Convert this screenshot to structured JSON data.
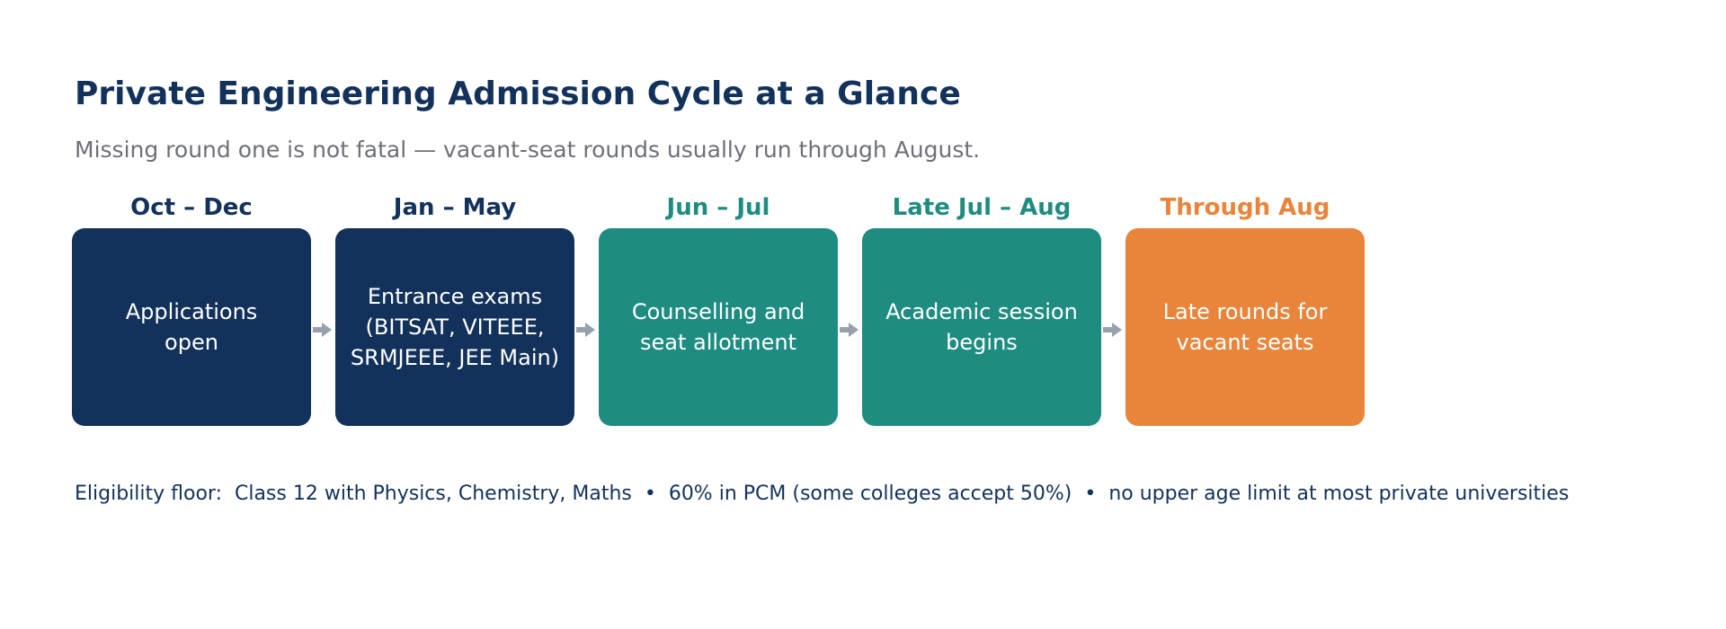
{
  "header": {
    "title": "Private Engineering Admission Cycle at a Glance",
    "subtitle": "Missing round one is not fatal — vacant-seat rounds usually run through August."
  },
  "colors": {
    "navy": "#13325b",
    "teal": "#1f8c81",
    "orange": "#e8853b",
    "arrow": "#98a0ae",
    "muted_text": "#6d7079"
  },
  "stages": [
    {
      "period": "Oct – Dec",
      "label": "Applications\nopen",
      "color": "#13325b"
    },
    {
      "period": "Jan – May",
      "label": "Entrance exams\n(BITSAT, VITEEE,\nSRMJEEE, JEE Main)",
      "color": "#13325b"
    },
    {
      "period": "Jun – Jul",
      "label": "Counselling and\nseat allotment",
      "color": "#1f8c81"
    },
    {
      "period": "Late Jul – Aug",
      "label": "Academic session\nbegins",
      "color": "#1f8c81"
    },
    {
      "period": "Through Aug",
      "label": "Late rounds for\nvacant seats",
      "color": "#e8853b"
    }
  ],
  "footer": {
    "text": "Eligibility floor:  Class 12 with Physics, Chemistry, Maths  •  60% in PCM (some colleges accept 50%)  •  no upper age limit at most private universities"
  }
}
